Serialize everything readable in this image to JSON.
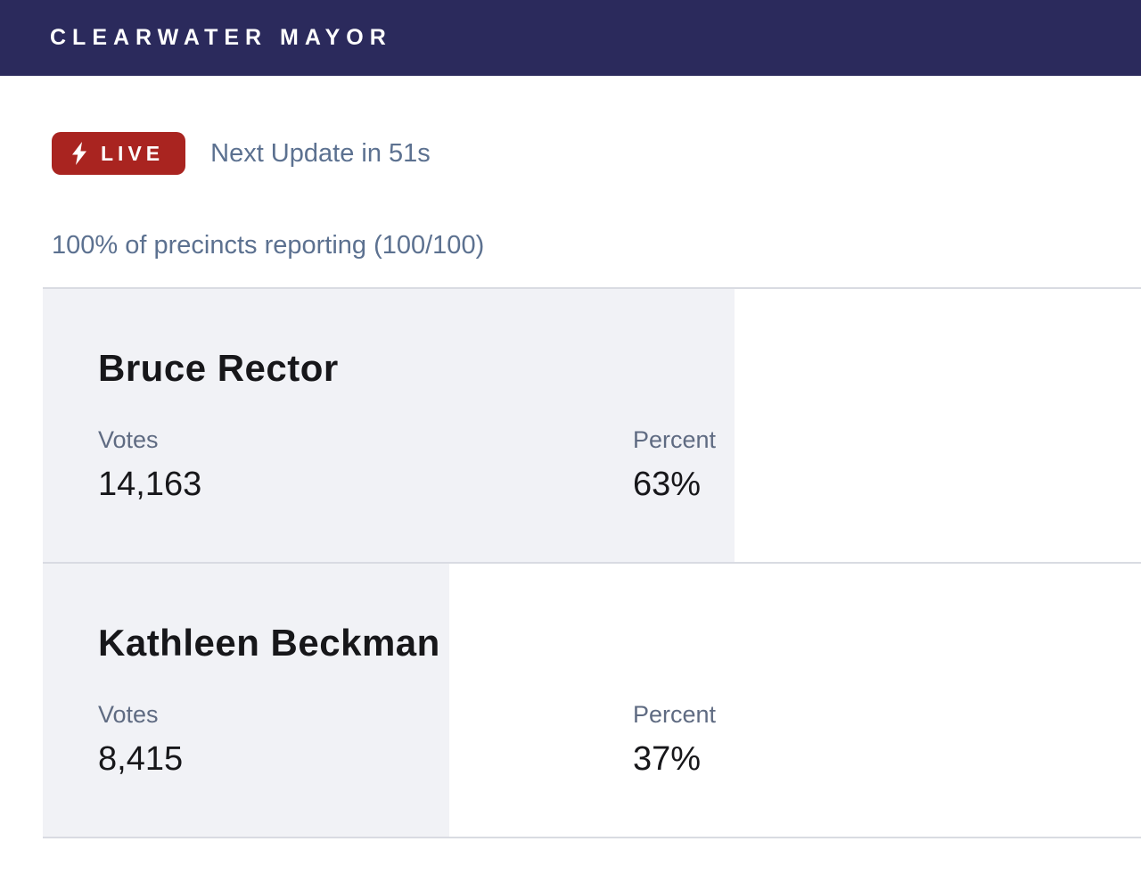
{
  "header": {
    "title": "CLEARWATER MAYOR"
  },
  "status": {
    "live_label": "LIVE",
    "next_update": "Next Update in 51s"
  },
  "precincts_text": "100% of precincts reporting (100/100)",
  "results": {
    "votes_label": "Votes",
    "percent_label": "Percent",
    "candidates": [
      {
        "name": "Bruce Rector",
        "votes": "14,163",
        "percent": "63%",
        "percent_value": 63
      },
      {
        "name": "Kathleen Beckman",
        "votes": "8,415",
        "percent": "37%",
        "percent_value": 37
      }
    ]
  },
  "colors": {
    "header_bg": "#2b2a5c",
    "live_badge_bg": "#a92420",
    "slate_text": "#5c7190",
    "label_text": "#5f6b82",
    "value_text": "#17171a",
    "bar_fill": "#f1f2f6",
    "divider": "#d9dbe2"
  }
}
